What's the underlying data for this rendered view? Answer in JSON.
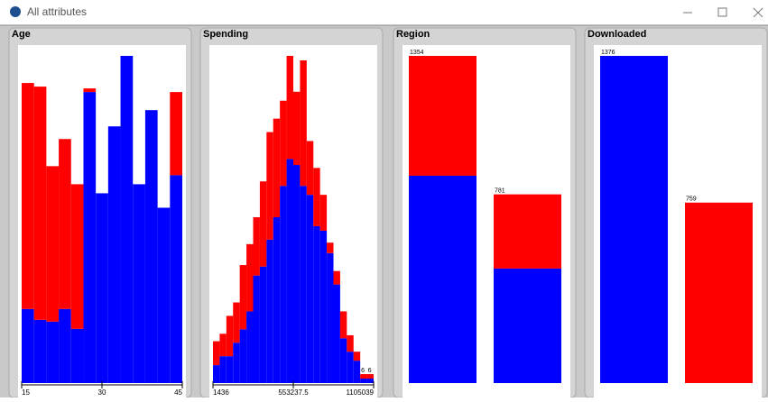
{
  "window": {
    "title": "All attributes"
  },
  "panels": [
    {
      "title": "Age",
      "type": "histogram",
      "series": [
        {
          "color": "#0000ff",
          "values": [
            41,
            35,
            34,
            41,
            30,
            161,
            105,
            142,
            181,
            110,
            151,
            97,
            115
          ]
        },
        {
          "color": "#ff0000",
          "values": [
            125,
            129,
            86,
            94,
            80,
            2,
            0,
            0,
            0,
            0,
            0,
            0,
            46
          ]
        }
      ],
      "axis_labels": [
        "15",
        "30",
        "45"
      ]
    },
    {
      "title": "Spending",
      "type": "histogram",
      "series": [
        {
          "color": "#0000ff",
          "values": [
            12,
            18,
            18,
            27,
            36,
            48,
            72,
            78,
            96,
            111,
            132,
            150,
            146,
            132,
            126,
            105,
            102,
            87,
            66,
            30,
            21,
            15,
            3,
            3
          ]
        },
        {
          "color": "#ff0000",
          "values": [
            16,
            15,
            27,
            27,
            43,
            45,
            39,
            57,
            72,
            66,
            57,
            69,
            49,
            84,
            36,
            39,
            24,
            7,
            9,
            18,
            11,
            6,
            3,
            3
          ]
        }
      ],
      "totals": [
        null,
        null,
        null,
        null,
        null,
        null,
        null,
        null,
        null,
        null,
        null,
        null,
        null,
        null,
        null,
        null,
        null,
        null,
        null,
        null,
        null,
        null,
        6,
        6
      ],
      "axis_labels": [
        "1436",
        "553237.5",
        "1105039"
      ]
    },
    {
      "title": "Region",
      "type": "bar",
      "series": [
        {
          "color": "#0000ff",
          "values": [
            858,
            474
          ]
        },
        {
          "color": "#ff0000",
          "values": [
            496,
            307
          ]
        }
      ],
      "totals": [
        1354,
        781
      ]
    },
    {
      "title": "Downloaded",
      "type": "bar",
      "series": [
        {
          "color": "#0000ff",
          "values": [
            1376,
            0
          ]
        },
        {
          "color": "#ff0000",
          "values": [
            0,
            759
          ]
        }
      ],
      "totals": [
        1376,
        759
      ]
    }
  ]
}
